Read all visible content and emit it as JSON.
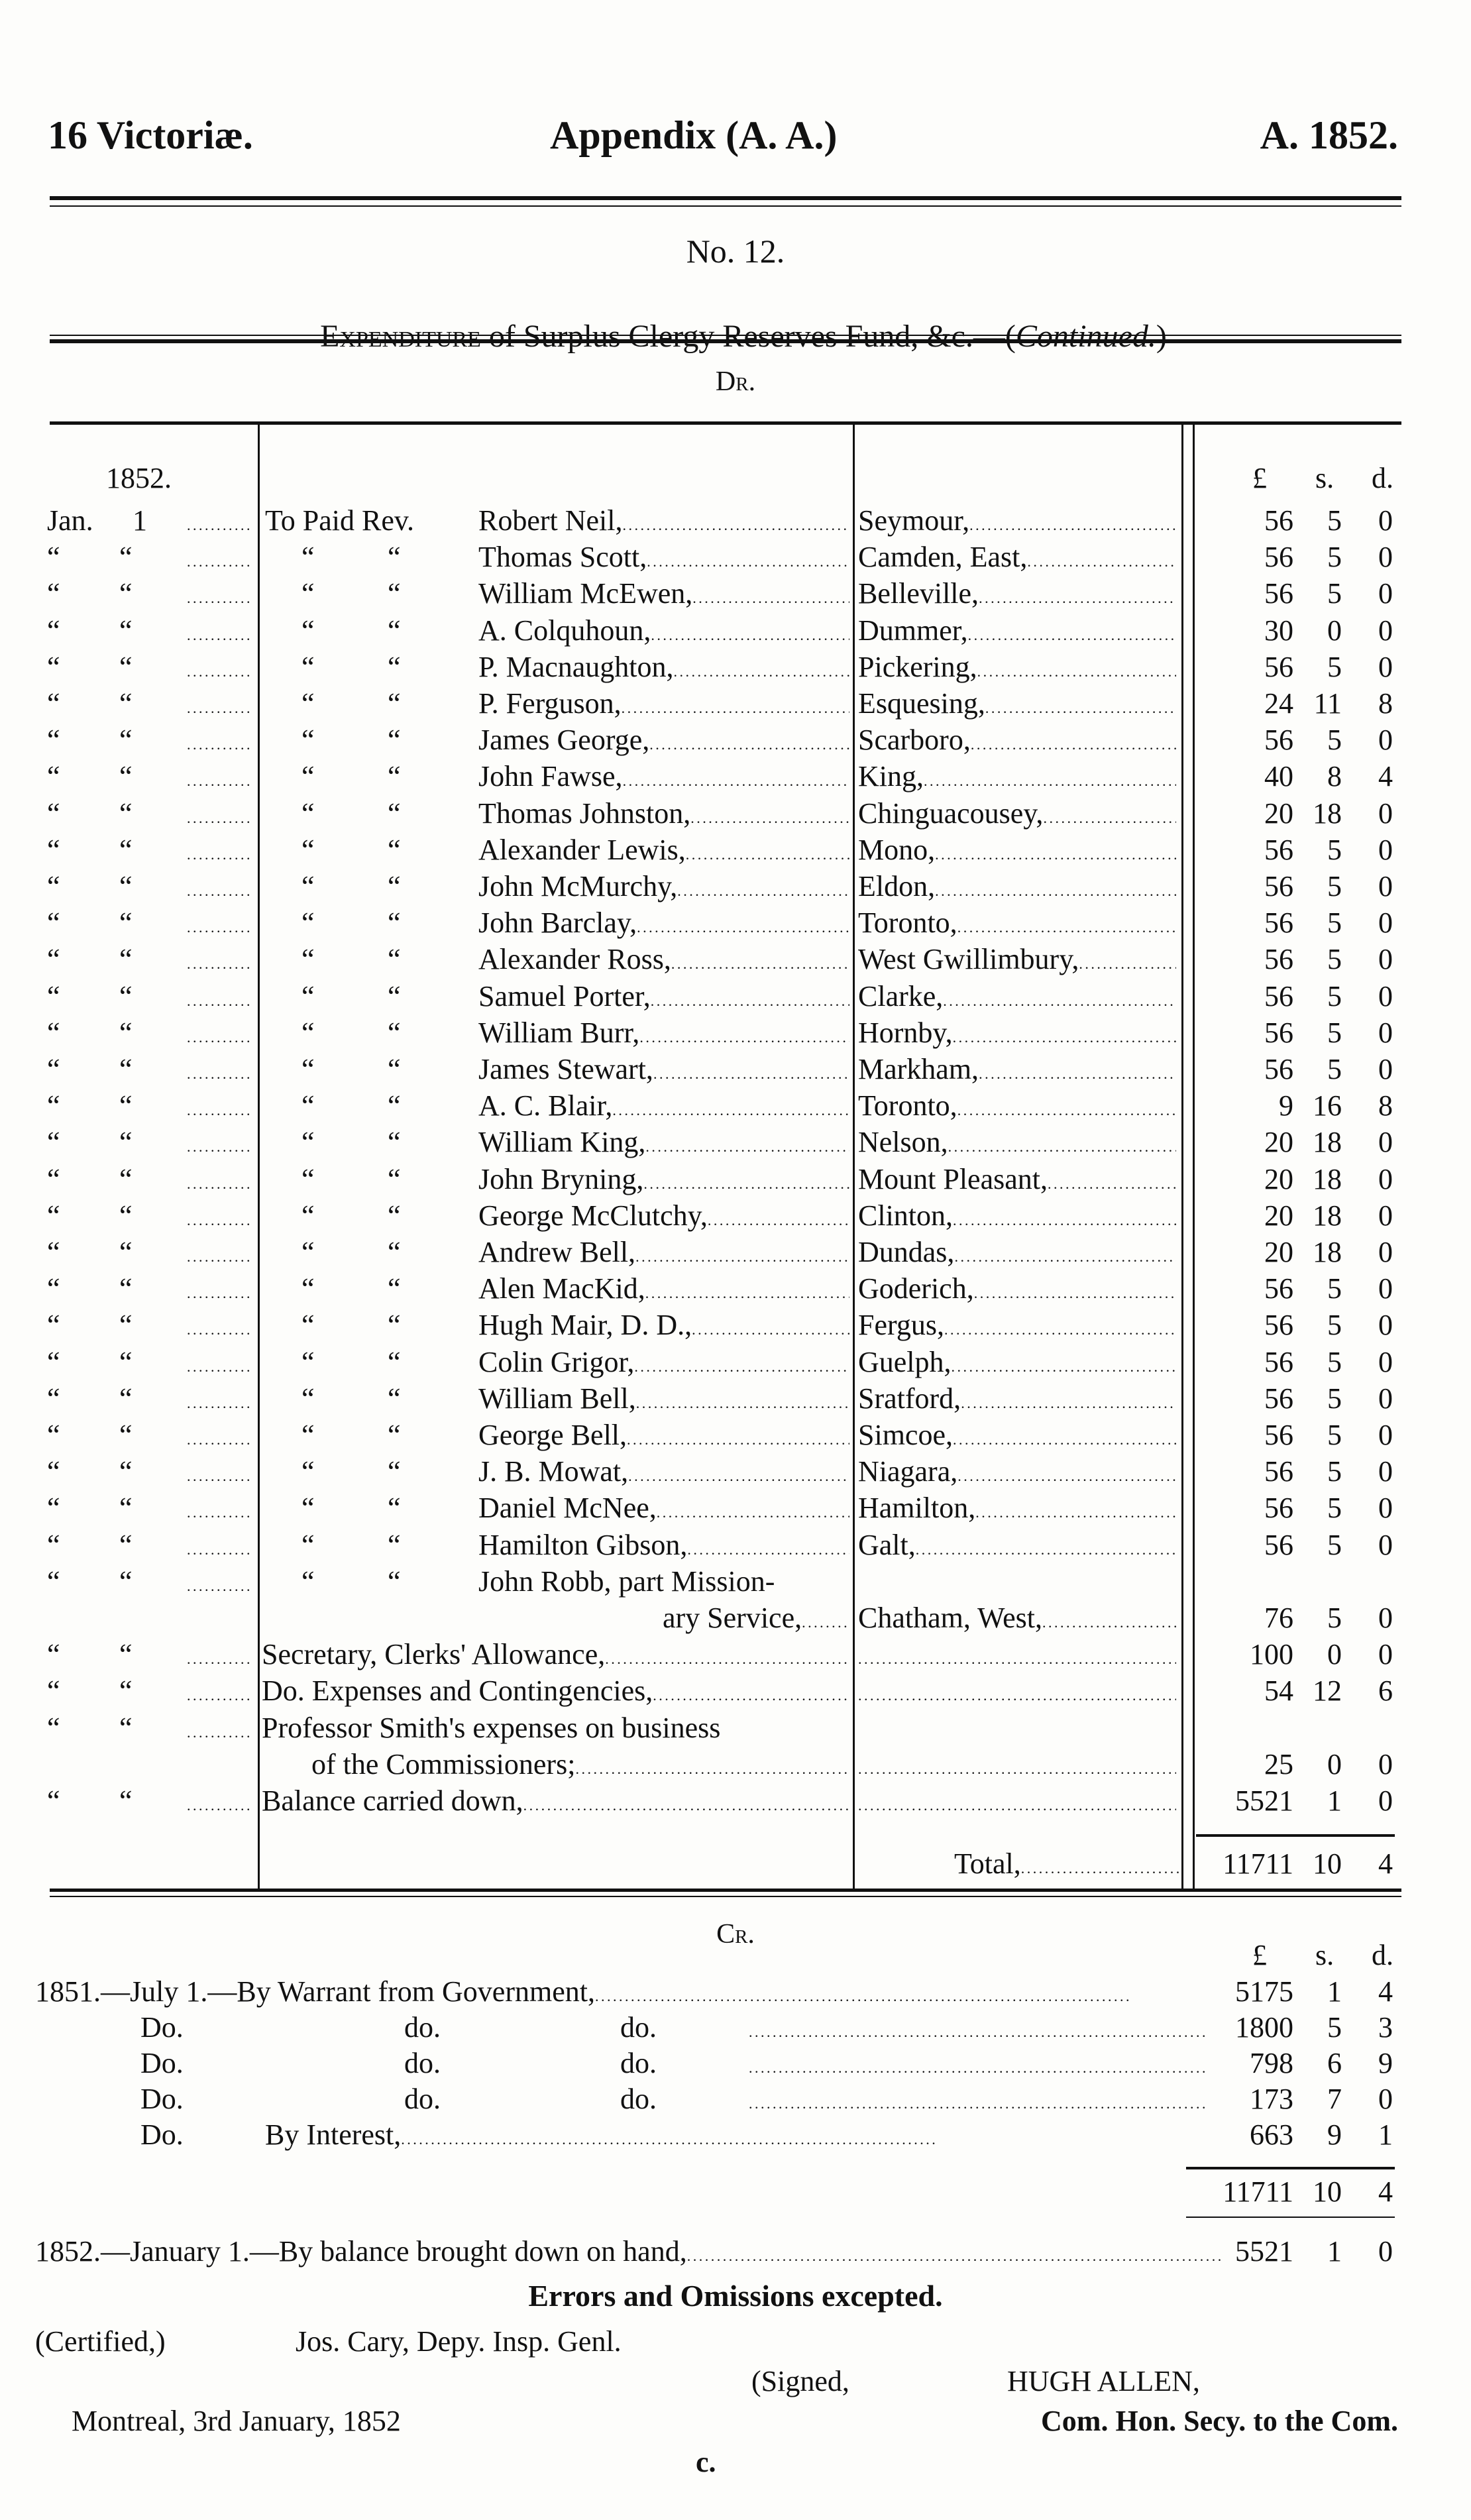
{
  "header": {
    "left": "16 Victoriæ.",
    "center": "Appendix (A. A.)",
    "right": "A. 1852."
  },
  "number": "No. 12.",
  "subtitle": {
    "lead": "Expenditure",
    "text": " of Surplus Clergy Reserves Fund, &c.—(",
    "continued": "Continued.",
    "close": ")"
  },
  "dr": {
    "heading": "Dr.",
    "year": "1852.",
    "col_pounds": "£",
    "col_shillings": "s.",
    "col_pence": "d.",
    "rows": [
      {
        "month": "Jan.",
        "day": "1",
        "p1": "To Paid Rev.",
        "p2": "",
        "name": "Robert Neil,",
        "place": "Seymour,",
        "l": "56",
        "s": "5",
        "d": "0"
      },
      {
        "month": "“",
        "day": "“",
        "p1": "“",
        "p2": "“",
        "name": "Thomas Scott,",
        "place": "Camden, East,",
        "l": "56",
        "s": "5",
        "d": "0"
      },
      {
        "month": "“",
        "day": "“",
        "p1": "“",
        "p2": "“",
        "name": "William McEwen,",
        "place": "Belleville,",
        "l": "56",
        "s": "5",
        "d": "0"
      },
      {
        "month": "“",
        "day": "“",
        "p1": "“",
        "p2": "“",
        "name": "A. Colquhoun,",
        "place": "Dummer,",
        "l": "30",
        "s": "0",
        "d": "0"
      },
      {
        "month": "“",
        "day": "“",
        "p1": "“",
        "p2": "“",
        "name": "P. Macnaughton,",
        "place": "Pickering,",
        "l": "56",
        "s": "5",
        "d": "0"
      },
      {
        "month": "“",
        "day": "“",
        "p1": "“",
        "p2": "“",
        "name": "P. Ferguson,",
        "place": "Esquesing,",
        "l": "24",
        "s": "11",
        "d": "8"
      },
      {
        "month": "“",
        "day": "“",
        "p1": "“",
        "p2": "“",
        "name": "James George,",
        "place": "Scarboro,",
        "l": "56",
        "s": "5",
        "d": "0"
      },
      {
        "month": "“",
        "day": "“",
        "p1": "“",
        "p2": "“",
        "name": "John Fawse,",
        "place": "King,",
        "l": "40",
        "s": "8",
        "d": "4"
      },
      {
        "month": "“",
        "day": "“",
        "p1": "“",
        "p2": "“",
        "name": "Thomas Johnston,",
        "place": "Chinguacousey,",
        "l": "20",
        "s": "18",
        "d": "0"
      },
      {
        "month": "“",
        "day": "“",
        "p1": "“",
        "p2": "“",
        "name": "Alexander Lewis,",
        "place": "Mono,",
        "l": "56",
        "s": "5",
        "d": "0"
      },
      {
        "month": "“",
        "day": "“",
        "p1": "“",
        "p2": "“",
        "name": "John McMurchy,",
        "place": "Eldon,",
        "l": "56",
        "s": "5",
        "d": "0"
      },
      {
        "month": "“",
        "day": "“",
        "p1": "“",
        "p2": "“",
        "name": "John Barclay,",
        "place": "Toronto,",
        "l": "56",
        "s": "5",
        "d": "0"
      },
      {
        "month": "“",
        "day": "“",
        "p1": "“",
        "p2": "“",
        "name": "Alexander Ross,",
        "place": "West Gwillimbury,",
        "l": "56",
        "s": "5",
        "d": "0"
      },
      {
        "month": "“",
        "day": "“",
        "p1": "“",
        "p2": "“",
        "name": "Samuel Porter,",
        "place": "Clarke,",
        "l": "56",
        "s": "5",
        "d": "0"
      },
      {
        "month": "“",
        "day": "“",
        "p1": "“",
        "p2": "“",
        "name": "William Burr,",
        "place": "Hornby,",
        "l": "56",
        "s": "5",
        "d": "0"
      },
      {
        "month": "“",
        "day": "“",
        "p1": "“",
        "p2": "“",
        "name": "James Stewart,",
        "place": "Markham,",
        "l": "56",
        "s": "5",
        "d": "0"
      },
      {
        "month": "“",
        "day": "“",
        "p1": "“",
        "p2": "“",
        "name": "A. C. Blair,",
        "place": "Toronto,",
        "l": "9",
        "s": "16",
        "d": "8"
      },
      {
        "month": "“",
        "day": "“",
        "p1": "“",
        "p2": "“",
        "name": "William King,",
        "place": "Nelson,",
        "l": "20",
        "s": "18",
        "d": "0"
      },
      {
        "month": "“",
        "day": "“",
        "p1": "“",
        "p2": "“",
        "name": "John Bryning,",
        "place": "Mount Pleasant,",
        "l": "20",
        "s": "18",
        "d": "0"
      },
      {
        "month": "“",
        "day": "“",
        "p1": "“",
        "p2": "“",
        "name": "George McClutchy,",
        "place": "Clinton,",
        "l": "20",
        "s": "18",
        "d": "0"
      },
      {
        "month": "“",
        "day": "“",
        "p1": "“",
        "p2": "“",
        "name": "Andrew Bell,",
        "place": "Dundas,",
        "l": "20",
        "s": "18",
        "d": "0"
      },
      {
        "month": "“",
        "day": "“",
        "p1": "“",
        "p2": "“",
        "name": "Alen MacKid,",
        "place": "Goderich,",
        "l": "56",
        "s": "5",
        "d": "0"
      },
      {
        "month": "“",
        "day": "“",
        "p1": "“",
        "p2": "“",
        "name": "Hugh Mair, D. D.,",
        "place": "Fergus,",
        "l": "56",
        "s": "5",
        "d": "0"
      },
      {
        "month": "“",
        "day": "“",
        "p1": "“",
        "p2": "“",
        "name": "Colin Grigor,",
        "place": "Guelph,",
        "l": "56",
        "s": "5",
        "d": "0"
      },
      {
        "month": "“",
        "day": "“",
        "p1": "“",
        "p2": "“",
        "name": "William Bell,",
        "place": "Sratford,",
        "l": "56",
        "s": "5",
        "d": "0"
      },
      {
        "month": "“",
        "day": "“",
        "p1": "“",
        "p2": "“",
        "name": "George Bell,",
        "place": "Simcoe,",
        "l": "56",
        "s": "5",
        "d": "0"
      },
      {
        "month": "“",
        "day": "“",
        "p1": "“",
        "p2": "“",
        "name": "J. B. Mowat,",
        "place": "Niagara,",
        "l": "56",
        "s": "5",
        "d": "0"
      },
      {
        "month": "“",
        "day": "“",
        "p1": "“",
        "p2": "“",
        "name": "Daniel McNee,",
        "place": "Hamilton,",
        "l": "56",
        "s": "5",
        "d": "0"
      },
      {
        "month": "“",
        "day": "“",
        "p1": "“",
        "p2": "“",
        "name": "Hamilton Gibson,",
        "place": "Galt,",
        "l": "56",
        "s": "5",
        "d": "0"
      },
      {
        "month": "“",
        "day": "“",
        "p1": "“",
        "p2": "“",
        "name": "John Robb, part Mission-",
        "cont": "ary Service,",
        "place": "Chatham, West,",
        "l": "76",
        "s": "5",
        "d": "0"
      },
      {
        "month": "“",
        "day": "“",
        "full": "Secretary, Clerks' Allowance,",
        "place": "",
        "l": "100",
        "s": "0",
        "d": "0"
      },
      {
        "month": "“",
        "day": "“",
        "full": "     Do.    Expenses and Contingencies,",
        "place": "",
        "l": "54",
        "s": "12",
        "d": "6"
      },
      {
        "month": "“",
        "day": "“",
        "full": "Professor Smith's expenses on business",
        "cont": "of the Commissioners;",
        "place": "",
        "l": "25",
        "s": "0",
        "d": "0"
      },
      {
        "month": "“",
        "day": "“",
        "full": "Balance carried down,",
        "place": "",
        "l": "5521",
        "s": "1",
        "d": "0"
      }
    ],
    "total_label": "Total,",
    "total": {
      "l": "11711",
      "s": "10",
      "d": "4"
    }
  },
  "cr": {
    "heading": "Cr.",
    "col_pounds": "£",
    "col_shillings": "s.",
    "col_pence": "d.",
    "rows": [
      {
        "a": "1851.—July 1.—By Warrant from Government,",
        "b": "",
        "c": "",
        "l": "5175",
        "s": "1",
        "d": "4"
      },
      {
        "a": "Do.",
        "b": "do.",
        "c": "do.",
        "l": "1800",
        "s": "5",
        "d": "3"
      },
      {
        "a": "Do.",
        "b": "do.",
        "c": "do.",
        "l": "798",
        "s": "6",
        "d": "9"
      },
      {
        "a": "Do.",
        "b": "do.",
        "c": "do.",
        "l": "173",
        "s": "7",
        "d": "0"
      },
      {
        "a": "Do.",
        "b": "By Interest,",
        "c": "",
        "l": "663",
        "s": "9",
        "d": "1"
      }
    ],
    "total": {
      "l": "11711",
      "s": "10",
      "d": "4"
    },
    "balance": {
      "label": "1852.—January 1.—By balance brought down on hand,",
      "l": "5521",
      "s": "1",
      "d": "0"
    }
  },
  "footer": {
    "errors": "Errors and Omissions excepted.",
    "certified": "(Certified,)",
    "cary": "Jos. Cary, Depy. Insp. Genl.",
    "signed": "(Signed,",
    "allen": "HUGH ALLEN,",
    "place_date": "Montreal, 3rd January, 1852",
    "allen_title": "Com. Hon. Secy. to the Com.",
    "signature_mark": "c."
  }
}
